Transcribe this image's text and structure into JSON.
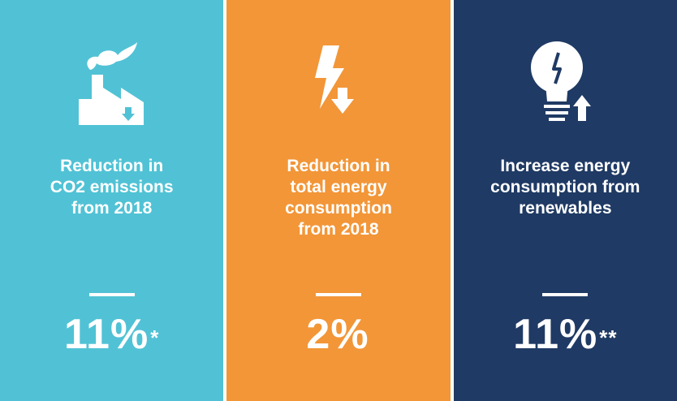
{
  "colors": {
    "panel1": "#51c2d5",
    "panel2": "#f29638",
    "panel3": "#1f3a64",
    "text": "#ffffff"
  },
  "panels": [
    {
      "icon": "factory-down-icon",
      "label": "Reduction in\nCO2 emissions\nfrom 2018",
      "value": "11%",
      "note": "*"
    },
    {
      "icon": "lightning-down-icon",
      "label": "Reduction in\ntotal energy\nconsumption\nfrom 2018",
      "value": "2%",
      "note": ""
    },
    {
      "icon": "lightbulb-up-icon",
      "label": "Increase energy\nconsumption from\nrenewables",
      "value": "11%",
      "note": "**"
    }
  ]
}
